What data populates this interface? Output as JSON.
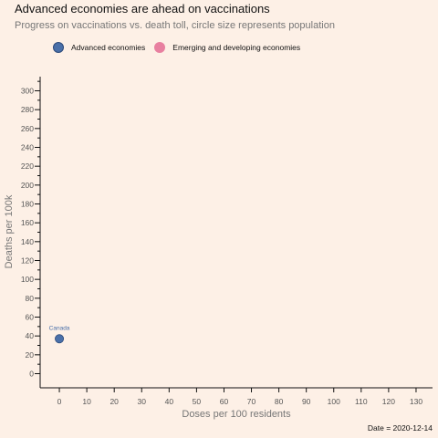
{
  "colors": {
    "background": "#fdf0e6",
    "advanced": "#4a70a9",
    "emerging": "#e880a0",
    "axis": "#111111",
    "tick_label": "#555555"
  },
  "chart_data": {
    "type": "scatter",
    "title": "Advanced economies are ahead on vaccinations",
    "subtitle": "Progress on vaccinations vs. death toll, circle size represents population",
    "xlabel": "Doses per 100 residents",
    "ylabel": "Deaths per 100k",
    "xlim": [
      -7,
      136
    ],
    "ylim": [
      -15,
      315
    ],
    "xticks": [
      0,
      10,
      20,
      30,
      40,
      50,
      60,
      70,
      80,
      90,
      100,
      110,
      120,
      130
    ],
    "yticks": [
      0,
      20,
      40,
      60,
      80,
      100,
      120,
      140,
      160,
      180,
      200,
      220,
      240,
      260,
      280,
      300
    ],
    "yticks_minor": [
      10,
      30,
      50,
      70,
      90,
      110,
      130,
      150,
      170,
      190,
      210,
      230,
      250,
      270,
      290,
      310
    ],
    "grid": false,
    "legend_position": "top-left",
    "series": [
      {
        "name": "Advanced economies",
        "color": "#4a70a9",
        "points": [
          {
            "label": "Canada",
            "x": 0,
            "y": 37
          }
        ]
      },
      {
        "name": "Emerging and developing economies",
        "color": "#e880a0",
        "points": []
      }
    ],
    "annotation": "Date = 2020-12-14"
  }
}
